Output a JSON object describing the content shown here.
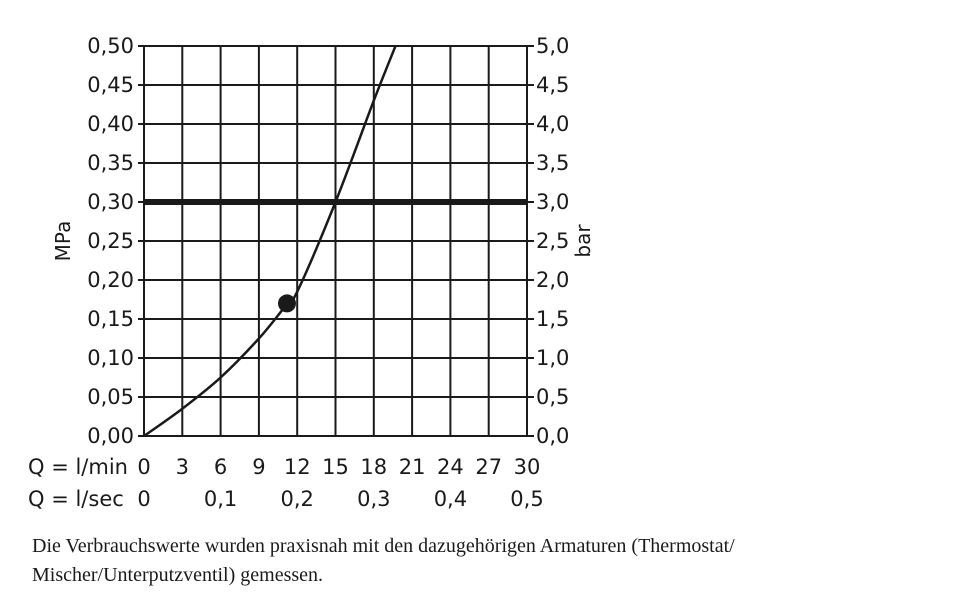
{
  "chart_data": {
    "type": "line",
    "title": "",
    "y_left": {
      "label": "MPa",
      "range": [
        0,
        0.5
      ],
      "ticks": [
        0,
        0.05,
        0.1,
        0.15,
        0.2,
        0.25,
        0.3,
        0.35,
        0.4,
        0.45,
        0.5
      ],
      "tick_labels": [
        "0,00",
        "0,05",
        "0,10",
        "0,15",
        "0,20",
        "0,25",
        "0,30",
        "0,35",
        "0,40",
        "0,45",
        "0,50"
      ]
    },
    "y_right": {
      "label": "bar",
      "range": [
        0,
        5.0
      ],
      "ticks": [
        0,
        0.5,
        1.0,
        1.5,
        2.0,
        2.5,
        3.0,
        3.5,
        4.0,
        4.5,
        5.0
      ],
      "tick_labels": [
        "0,0",
        "0,5",
        "1,0",
        "1,5",
        "2,0",
        "2,5",
        "3,0",
        "3,5",
        "4,0",
        "4,5",
        "5,0"
      ]
    },
    "x_lmin": {
      "label": "Q = l/min",
      "range": [
        0,
        30
      ],
      "ticks": [
        0,
        3,
        6,
        9,
        12,
        15,
        18,
        21,
        24,
        27,
        30
      ],
      "tick_labels": [
        "0",
        "3",
        "6",
        "9",
        "12",
        "15",
        "18",
        "21",
        "24",
        "27",
        "30"
      ]
    },
    "x_lsec": {
      "label": "Q = l/sec",
      "ticks": [
        0,
        0.1,
        0.2,
        0.3,
        0.4,
        0.5
      ],
      "tick_labels": [
        "0",
        "0,1",
        "0,2",
        "0,3",
        "0,4",
        "0,5"
      ]
    },
    "grid": true,
    "series": [
      {
        "x": [
          0,
          3,
          6,
          9,
          11,
          12,
          15,
          18,
          19.7
        ],
        "y": [
          0,
          0.035,
          0.075,
          0.125,
          0.165,
          0.185,
          0.3,
          0.43,
          0.5
        ]
      }
    ],
    "reference_line": {
      "y": 0.3
    },
    "dropline": {
      "x": 15,
      "y": 0.3
    },
    "marker": {
      "x": 11.2,
      "y": 0.17
    }
  },
  "caption": {
    "line1": "Die Verbrauchswerte wurden praxisnah mit den dazugehörigen Armaturen (Thermostat/",
    "line2": "Mischer/Unterputzventil) gemessen."
  }
}
